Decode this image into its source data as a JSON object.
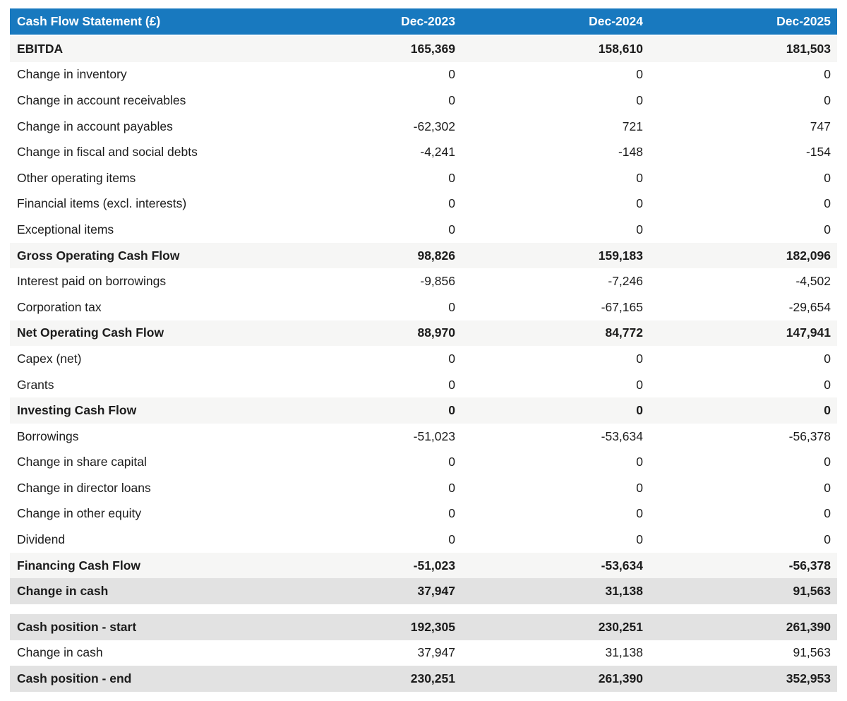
{
  "colors": {
    "header_bg": "#1879bf",
    "header_text": "#ffffff",
    "subtotal_row_bg": "#f6f6f5",
    "highlight_row_bg": "#e2e2e2",
    "body_text": "#1c1c1c"
  },
  "table": {
    "title": "Cash Flow Statement (£)",
    "columns": [
      "Dec-2023",
      "Dec-2024",
      "Dec-2025"
    ],
    "rows": [
      {
        "label": "EBITDA",
        "values": [
          "165,369",
          "158,610",
          "181,503"
        ],
        "style": "subtotal"
      },
      {
        "label": "Change in inventory",
        "values": [
          "0",
          "0",
          "0"
        ],
        "style": "normal"
      },
      {
        "label": "Change in account receivables",
        "values": [
          "0",
          "0",
          "0"
        ],
        "style": "normal"
      },
      {
        "label": "Change in account payables",
        "values": [
          "-62,302",
          "721",
          "747"
        ],
        "style": "normal"
      },
      {
        "label": "Change in fiscal and social debts",
        "values": [
          "-4,241",
          "-148",
          "-154"
        ],
        "style": "normal"
      },
      {
        "label": "Other operating items",
        "values": [
          "0",
          "0",
          "0"
        ],
        "style": "normal"
      },
      {
        "label": "Financial items (excl. interests)",
        "values": [
          "0",
          "0",
          "0"
        ],
        "style": "normal"
      },
      {
        "label": "Exceptional items",
        "values": [
          "0",
          "0",
          "0"
        ],
        "style": "normal"
      },
      {
        "label": "Gross Operating Cash Flow",
        "values": [
          "98,826",
          "159,183",
          "182,096"
        ],
        "style": "subtotal"
      },
      {
        "label": "Interest paid on borrowings",
        "values": [
          "-9,856",
          "-7,246",
          "-4,502"
        ],
        "style": "normal"
      },
      {
        "label": "Corporation tax",
        "values": [
          "0",
          "-67,165",
          "-29,654"
        ],
        "style": "normal"
      },
      {
        "label": "Net Operating Cash Flow",
        "values": [
          "88,970",
          "84,772",
          "147,941"
        ],
        "style": "subtotal"
      },
      {
        "label": "Capex (net)",
        "values": [
          "0",
          "0",
          "0"
        ],
        "style": "normal"
      },
      {
        "label": "Grants",
        "values": [
          "0",
          "0",
          "0"
        ],
        "style": "normal"
      },
      {
        "label": "Investing Cash Flow",
        "values": [
          "0",
          "0",
          "0"
        ],
        "style": "subtotal"
      },
      {
        "label": "Borrowings",
        "values": [
          "-51,023",
          "-53,634",
          "-56,378"
        ],
        "style": "normal"
      },
      {
        "label": "Change in share capital",
        "values": [
          "0",
          "0",
          "0"
        ],
        "style": "normal"
      },
      {
        "label": "Change in director loans",
        "values": [
          "0",
          "0",
          "0"
        ],
        "style": "normal"
      },
      {
        "label": "Change in other equity",
        "values": [
          "0",
          "0",
          "0"
        ],
        "style": "normal"
      },
      {
        "label": "Dividend",
        "values": [
          "0",
          "0",
          "0"
        ],
        "style": "normal"
      },
      {
        "label": "Financing Cash Flow",
        "values": [
          "-51,023",
          "-53,634",
          "-56,378"
        ],
        "style": "subtotal"
      },
      {
        "label": "Change in cash",
        "values": [
          "37,947",
          "31,138",
          "91,563"
        ],
        "style": "highlight"
      },
      {
        "label": "Cash position - start",
        "values": [
          "192,305",
          "230,251",
          "261,390"
        ],
        "style": "highlight",
        "section_break": true
      },
      {
        "label": "Change in cash",
        "values": [
          "37,947",
          "31,138",
          "91,563"
        ],
        "style": "normal"
      },
      {
        "label": "Cash position - end",
        "values": [
          "230,251",
          "261,390",
          "352,953"
        ],
        "style": "highlight"
      }
    ]
  }
}
